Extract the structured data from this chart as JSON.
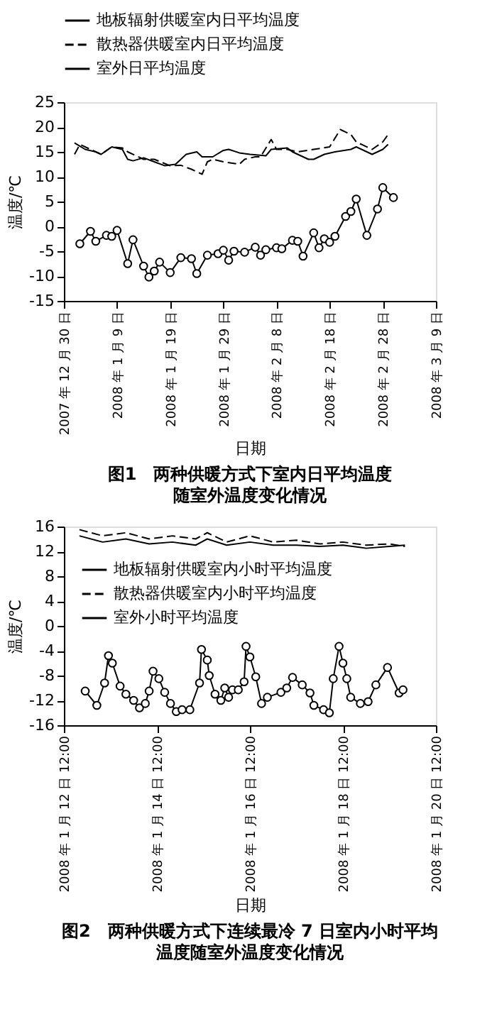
{
  "chart_data": [
    {
      "type": "line",
      "title": "图1　两种供暖方式下室内日平均温度",
      "subtitle": "随室外温度变化情况",
      "xlabel": "日期",
      "ylabel": "温度/℃",
      "xlim": [
        "2007-12-30",
        "2008-03-09"
      ],
      "xticks": [
        {
          "value": "2007-12-30",
          "label": "2007 年 12 月 30 日"
        },
        {
          "value": "2008-01-09",
          "label": "2008 年 1 月 9 日"
        },
        {
          "value": "2008-01-19",
          "label": "2008 年 1 月 19 日"
        },
        {
          "value": "2008-01-29",
          "label": "2008 年 1 月 29 日"
        },
        {
          "value": "2008-02-08",
          "label": "2008 年 2 月 8 日"
        },
        {
          "value": "2008-02-18",
          "label": "2008 年 2 月 18 日"
        },
        {
          "value": "2008-02-28",
          "label": "2008 年 2 月 28 日"
        },
        {
          "value": "2008-03-09",
          "label": "2008 年 3 月 9 日"
        }
      ],
      "ylim": [
        -15,
        25
      ],
      "yticks": [
        -15,
        -10,
        -5,
        0,
        5,
        10,
        15,
        20,
        25
      ],
      "grid": false,
      "legend": "top",
      "series": [
        {
          "name": "地板辐射供暖室内日平均温度",
          "color": "#000000",
          "line_style": "solid",
          "marker": "none",
          "x": [
            "2008-01-01",
            "2008-01-03",
            "2008-01-05",
            "2008-01-06",
            "2008-01-08",
            "2008-01-10",
            "2008-01-11",
            "2008-01-12",
            "2008-01-14",
            "2008-01-16",
            "2008-01-18",
            "2008-01-20",
            "2008-01-22",
            "2008-01-24",
            "2008-01-25",
            "2008-01-27",
            "2008-01-29",
            "2008-01-30",
            "2008-02-01",
            "2008-02-03",
            "2008-02-06",
            "2008-02-07",
            "2008-02-10",
            "2008-02-11",
            "2008-02-14",
            "2008-02-15",
            "2008-02-17",
            "2008-02-19",
            "2008-02-22",
            "2008-02-23",
            "2008-02-25",
            "2008-02-26",
            "2008-02-28",
            "2008-02-29"
          ],
          "values": [
            16.8,
            15.5,
            15,
            14.5,
            16,
            15.5,
            13.5,
            13.2,
            13.8,
            13,
            12.2,
            12.5,
            14.5,
            15,
            14,
            14,
            15.3,
            15.5,
            14.8,
            14.5,
            14.2,
            15.5,
            15.8,
            15,
            13.5,
            13.5,
            14.5,
            15,
            15.5,
            16,
            15,
            14.5,
            15.5,
            16.5
          ]
        },
        {
          "name": "散热器供暖室内日平均温度",
          "color": "#000000",
          "line_style": "dashed",
          "marker": "none",
          "x": [
            "2008-01-01",
            "2008-01-02",
            "2008-01-04",
            "2008-01-06",
            "2008-01-08",
            "2008-01-10",
            "2008-01-11",
            "2008-01-14",
            "2008-01-16",
            "2008-01-19",
            "2008-01-21",
            "2008-01-23",
            "2008-01-25",
            "2008-01-26",
            "2008-01-27",
            "2008-01-29",
            "2008-02-01",
            "2008-02-02",
            "2008-02-04",
            "2008-02-05",
            "2008-02-07",
            "2008-02-08",
            "2008-02-10",
            "2008-02-12",
            "2008-02-15",
            "2008-02-18",
            "2008-02-20",
            "2008-02-22",
            "2008-02-23",
            "2008-02-26",
            "2008-02-28",
            "2008-02-29"
          ],
          "values": [
            14.5,
            16.5,
            15.5,
            14.5,
            16,
            15.8,
            15,
            13.5,
            13.5,
            12.2,
            12.3,
            11.5,
            10.5,
            13,
            13.5,
            13,
            12.5,
            13.5,
            14,
            14,
            17.5,
            15.5,
            15.5,
            15,
            15.5,
            16,
            19.5,
            18.5,
            17,
            15.5,
            17,
            18.5
          ]
        },
        {
          "name": "室外日平均温度",
          "color": "#000000",
          "line_style": "solid",
          "marker": "circle",
          "x": [
            "2008-01-02",
            "2008-01-04",
            "2008-01-05",
            "2008-01-07",
            "2008-01-08",
            "2008-01-09",
            "2008-01-11",
            "2008-01-12",
            "2008-01-14",
            "2008-01-15",
            "2008-01-16",
            "2008-01-17",
            "2008-01-19",
            "2008-01-21",
            "2008-01-23",
            "2008-01-24",
            "2008-01-26",
            "2008-01-28",
            "2008-01-29",
            "2008-01-30",
            "2008-01-31",
            "2008-02-02",
            "2008-02-04",
            "2008-02-05",
            "2008-02-06",
            "2008-02-08",
            "2008-02-09",
            "2008-02-11",
            "2008-02-12",
            "2008-02-13",
            "2008-02-15",
            "2008-02-16",
            "2008-02-17",
            "2008-02-18",
            "2008-02-19",
            "2008-02-21",
            "2008-02-22",
            "2008-02-23",
            "2008-02-25",
            "2008-02-27",
            "2008-02-28",
            "2008-03-01"
          ],
          "values": [
            -3.5,
            -1,
            -3,
            -1.8,
            -2,
            -0.8,
            -7.5,
            -2.7,
            -8,
            -10.2,
            -9,
            -7.2,
            -9.3,
            -6.3,
            -6.5,
            -9.5,
            -5.8,
            -5.5,
            -4.8,
            -6.8,
            -5,
            -5.2,
            -4.2,
            -5.8,
            -4.7,
            -4.3,
            -4.5,
            -2.8,
            -3,
            -6,
            -1.3,
            -4.3,
            -2.5,
            -3.2,
            -2,
            2,
            3,
            5.5,
            -1.8,
            3.5,
            7.8,
            5.8
          ]
        }
      ]
    },
    {
      "type": "line",
      "title": "图2　两种供暖方式下连续最冷 7 日室内小时平均",
      "subtitle": "温度随室外温度变化情况",
      "xlabel": "日期",
      "ylabel": "温度/℃",
      "xlim": [
        "2008-01-12T12:00",
        "2008-01-20T12:00"
      ],
      "xticks": [
        {
          "value": "2008-01-12T12:00",
          "label": "2008 年 1 月 12 日 12:00"
        },
        {
          "value": "2008-01-14T12:00",
          "label": "2008 年 1 月 14 日 12:00"
        },
        {
          "value": "2008-01-16T12:00",
          "label": "2008 年 1 月 16 日 12:00"
        },
        {
          "value": "2008-01-18T12:00",
          "label": "2008 年 1 月 18 日 12:00"
        },
        {
          "value": "2008-01-20T12:00",
          "label": "2008 年 1 月 20 日 12:00"
        }
      ],
      "ylim": [
        -16,
        16
      ],
      "yticks": [
        -16,
        -12,
        -8,
        -4,
        0,
        4,
        8,
        12,
        16
      ],
      "grid": false,
      "legend": "left",
      "series": [
        {
          "name": "地板辐射供暖室内小时平均温度",
          "color": "#000000",
          "line_style": "solid",
          "marker": "none",
          "x": [
            "2008-01-12T20:00",
            "2008-01-13T08:00",
            "2008-01-13T20:00",
            "2008-01-14T08:00",
            "2008-01-14T20:00",
            "2008-01-15T08:00",
            "2008-01-15T14:00",
            "2008-01-16T00:00",
            "2008-01-16T12:00",
            "2008-01-17T00:00",
            "2008-01-17T12:00",
            "2008-01-18T00:00",
            "2008-01-18T12:00",
            "2008-01-19T00:00",
            "2008-01-19T12:00",
            "2008-01-19T20:00"
          ],
          "values": [
            14.5,
            13.5,
            14,
            13.2,
            13.5,
            13,
            14,
            13,
            13.5,
            13,
            13,
            12.8,
            13,
            12.5,
            12.8,
            13
          ]
        },
        {
          "name": "散热器供暖室内小时平均温度",
          "color": "#000000",
          "line_style": "dashed",
          "marker": "none",
          "x": [
            "2008-01-12T20:00",
            "2008-01-13T08:00",
            "2008-01-13T20:00",
            "2008-01-14T08:00",
            "2008-01-14T20:00",
            "2008-01-15T08:00",
            "2008-01-15T14:00",
            "2008-01-16T00:00",
            "2008-01-16T12:00",
            "2008-01-17T00:00",
            "2008-01-17T12:00",
            "2008-01-18T00:00",
            "2008-01-18T12:00",
            "2008-01-19T00:00",
            "2008-01-19T12:00",
            "2008-01-19T20:00"
          ],
          "values": [
            15.5,
            14.5,
            15,
            14,
            14.5,
            14,
            15,
            13.5,
            14.5,
            13.5,
            13.8,
            13.2,
            13.5,
            13,
            13.2,
            12.8
          ]
        },
        {
          "name": "室外小时平均温度",
          "color": "#000000",
          "line_style": "solid",
          "marker": "circle",
          "x": [
            "2008-01-12T23:00",
            "2008-01-13T05:00",
            "2008-01-13T09:00",
            "2008-01-13T11:00",
            "2008-01-13T13:00",
            "2008-01-13T17:00",
            "2008-01-13T20:00",
            "2008-01-14T00:00",
            "2008-01-14T03:00",
            "2008-01-14T06:00",
            "2008-01-14T08:00",
            "2008-01-14T10:00",
            "2008-01-14T13:00",
            "2008-01-14T16:00",
            "2008-01-14T19:00",
            "2008-01-14T22:00",
            "2008-01-15T01:00",
            "2008-01-15T05:00",
            "2008-01-15T10:00",
            "2008-01-15T11:00",
            "2008-01-15T14:00",
            "2008-01-15T15:00",
            "2008-01-15T18:00",
            "2008-01-15T21:00",
            "2008-01-15T23:00",
            "2008-01-16T01:00",
            "2008-01-16T03:00",
            "2008-01-16T06:00",
            "2008-01-16T09:00",
            "2008-01-16T10:00",
            "2008-01-16T12:00",
            "2008-01-16T15:00",
            "2008-01-16T18:00",
            "2008-01-16T21:00",
            "2008-01-17T04:00",
            "2008-01-17T07:00",
            "2008-01-17T10:00",
            "2008-01-17T15:00",
            "2008-01-17T19:00",
            "2008-01-17T21:00",
            "2008-01-18T02:00",
            "2008-01-18T05:00",
            "2008-01-18T07:00",
            "2008-01-18T10:00",
            "2008-01-18T12:00",
            "2008-01-18T14:00",
            "2008-01-18T16:00",
            "2008-01-18T21:00",
            "2008-01-19T01:00",
            "2008-01-19T05:00",
            "2008-01-19T11:00",
            "2008-01-19T17:00",
            "2008-01-19T19:00"
          ],
          "values": [
            -10.5,
            -12.8,
            -9.2,
            -4.8,
            -6,
            -9.7,
            -11,
            -12,
            -13.2,
            -12.5,
            -10.5,
            -7.3,
            -8.5,
            -10.7,
            -12.5,
            -13.8,
            -13.5,
            -13.5,
            -9.2,
            -3.8,
            -5.5,
            -8,
            -11,
            -12,
            -10,
            -11.5,
            -10.3,
            -10.3,
            -9,
            -3.3,
            -5,
            -8.2,
            -12.5,
            -11.5,
            -10.7,
            -10,
            -8.3,
            -9.5,
            -10.8,
            -12.8,
            -13.5,
            -14,
            -8.5,
            -3.3,
            -6,
            -8.5,
            -11.5,
            -12.5,
            -12.2,
            -9.5,
            -6.7,
            -10.8,
            -10.3
          ]
        }
      ]
    }
  ]
}
